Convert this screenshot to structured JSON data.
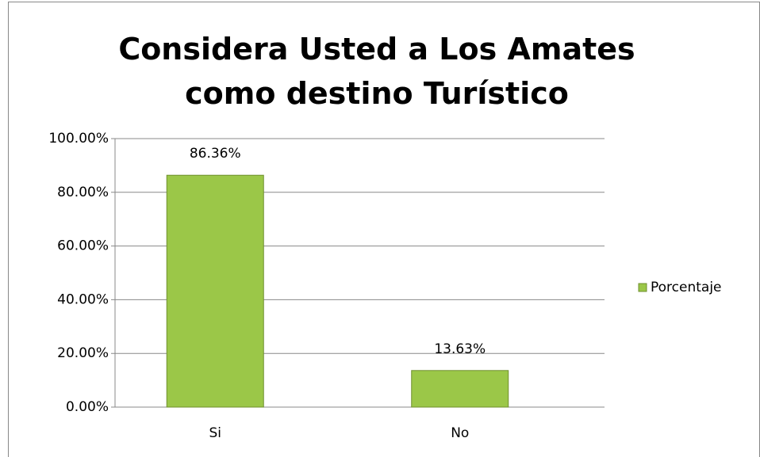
{
  "chart_data": {
    "type": "bar",
    "title": "Considera Usted a Los Amates como destino Turístico",
    "categories": [
      "Si",
      "No"
    ],
    "series": [
      {
        "name": "Porcentaje",
        "color": "#9bc748",
        "values": [
          86.36,
          13.63
        ],
        "value_labels": [
          "86.36%",
          "13.63%"
        ]
      }
    ],
    "ylim": [
      0,
      100
    ],
    "yticks": [
      {
        "value": 0,
        "label": "0.00%"
      },
      {
        "value": 20,
        "label": "20.00%"
      },
      {
        "value": 40,
        "label": "40.00%"
      },
      {
        "value": 60,
        "label": "60.00%"
      },
      {
        "value": 80,
        "label": "80.00%"
      },
      {
        "value": 100,
        "label": "100.00%"
      }
    ],
    "grid": true,
    "legend": "right"
  }
}
